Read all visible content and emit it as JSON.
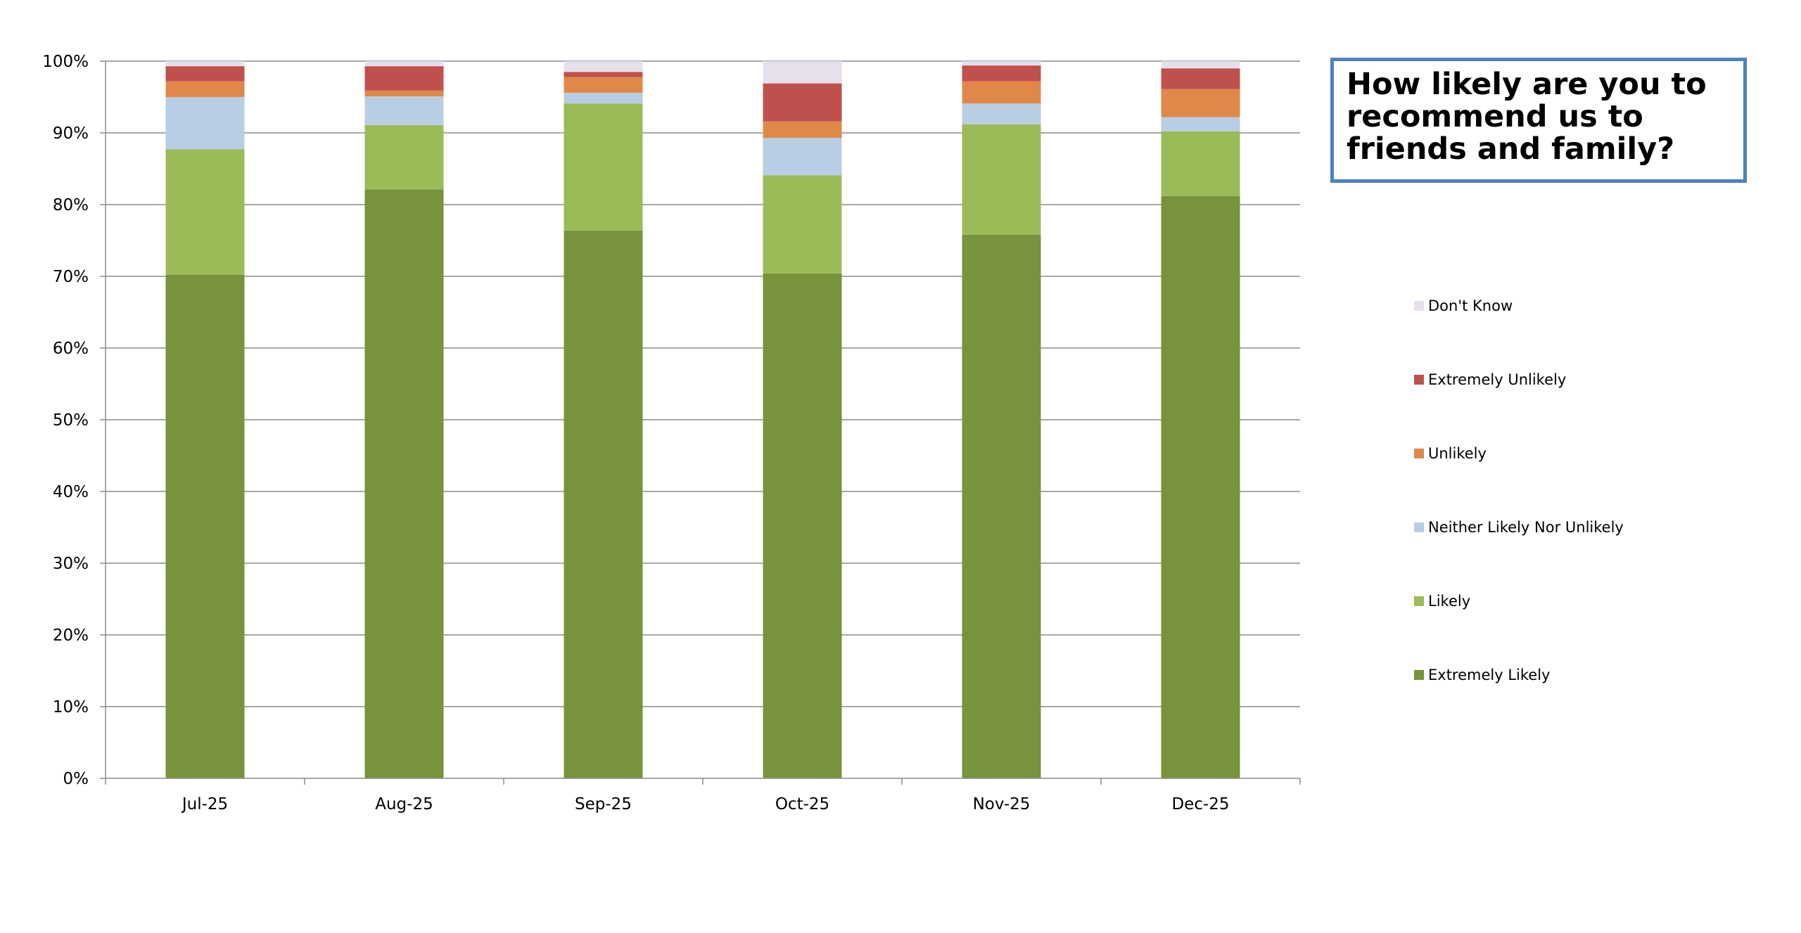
{
  "chart_data": {
    "type": "bar",
    "stacked": true,
    "title": "How likely are you to recommend us to friends and family?",
    "categories": [
      "Jul-25",
      "Aug-25",
      "Sep-25",
      "Oct-25",
      "Nov-25",
      "Dec-25"
    ],
    "ylim": [
      0,
      100
    ],
    "yticks": [
      "0%",
      "10%",
      "20%",
      "30%",
      "40%",
      "50%",
      "60%",
      "70%",
      "80%",
      "90%",
      "100%"
    ],
    "grid": true,
    "legend_position": "right",
    "series": [
      {
        "name": "Extremely Likely",
        "color": "#77933c",
        "values": [
          70.2,
          82.1,
          76.4,
          70.4,
          75.8,
          81.2
        ]
      },
      {
        "name": "Likely",
        "color": "#9bbb59",
        "values": [
          17.5,
          9.0,
          17.7,
          13.7,
          15.4,
          9.0
        ]
      },
      {
        "name": "Neither Likely Nor Unlikely",
        "color": "#b9cde5",
        "values": [
          7.3,
          4.0,
          1.5,
          5.2,
          2.9,
          2.0
        ]
      },
      {
        "name": "Unlikely",
        "color": "#e0884a",
        "values": [
          2.2,
          0.8,
          2.2,
          2.3,
          3.1,
          3.9
        ]
      },
      {
        "name": "Extremely Unlikely",
        "color": "#c0504d",
        "values": [
          2.1,
          3.4,
          0.7,
          5.3,
          2.2,
          2.9
        ]
      },
      {
        "name": "Don't Know",
        "color": "#e6dfec",
        "values": [
          0.7,
          0.7,
          1.5,
          3.1,
          0.6,
          1.0
        ]
      }
    ]
  }
}
